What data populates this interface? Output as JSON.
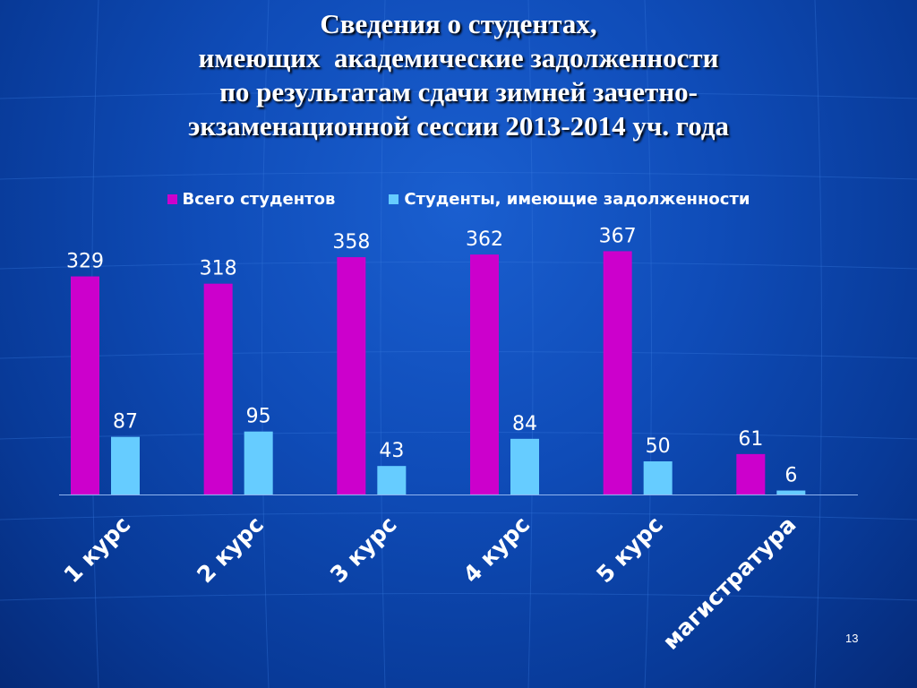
{
  "title_lines": [
    "Сведения о студентах,",
    "имеющих  академические задолженности",
    "по результатам сдачи зимней зачетно-",
    "экзаменационной сессии 2013-2014 уч. года"
  ],
  "slide_number": "13",
  "colors": {
    "series_total": "#cc00cc",
    "series_debt": "#66ccff"
  },
  "chart_data": {
    "type": "bar",
    "categories": [
      "1 курс",
      "2 курс",
      "3 курс",
      "4 курс",
      "5 курс",
      "магистратура"
    ],
    "series": [
      {
        "name": "Всего студентов",
        "values": [
          329,
          318,
          358,
          362,
          367,
          61
        ]
      },
      {
        "name": "Студенты, имеющие задолженности",
        "values": [
          87,
          95,
          43,
          84,
          50,
          6
        ]
      }
    ],
    "ylim": [
      0,
      400
    ],
    "legend_position": "top",
    "grid": false
  }
}
